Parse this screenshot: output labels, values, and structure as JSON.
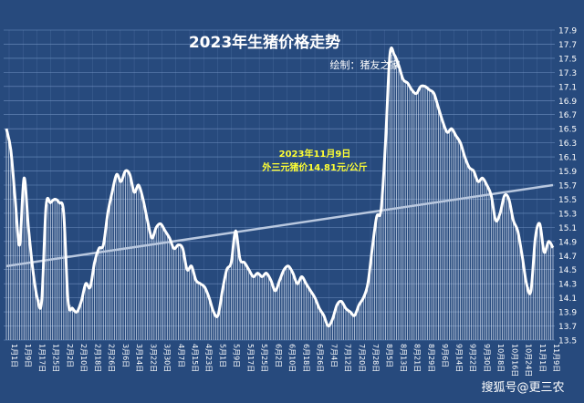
{
  "chart_data": {
    "type": "area",
    "title": "2023年生猪价格走势",
    "subtitle": "绘制：猪友之家",
    "annotation": {
      "line1": "2023年11月9日",
      "line2": "外三元猪价14.81元/公斤",
      "color": "#ffff33"
    },
    "watermark": "搜狐号@更三农",
    "ylim": [
      13.5,
      17.9
    ],
    "y_ticks": [
      "13.5",
      "13.7",
      "13.9",
      "14.1",
      "14.3",
      "14.5",
      "14.7",
      "14.9",
      "15.1",
      "15.3",
      "15.5",
      "15.7",
      "15.9",
      "16.1",
      "16.3",
      "16.5",
      "16.7",
      "16.9",
      "17.1",
      "17.3",
      "17.5",
      "17.7",
      "17.9"
    ],
    "x_tick_labels": [
      "1月1日",
      "1月9日",
      "1月17日",
      "1月25日",
      "2月2日",
      "2月10日",
      "2月18日",
      "2月26日",
      "3月6日",
      "3月14日",
      "3月22日",
      "3月30日",
      "4月7日",
      "4月15日",
      "4月23日",
      "5月1日",
      "5月9日",
      "5月17日",
      "5月25日",
      "6月2日",
      "6月10日",
      "6月18日",
      "6月26日",
      "7月4日",
      "7月12日",
      "7月20日",
      "7月28日",
      "8月5日",
      "8月13日",
      "8月21日",
      "8月29日",
      "9月6日",
      "9月14日",
      "9月22日",
      "9月30日",
      "10月8日",
      "10月16日",
      "10月24日",
      "11月1日",
      "11月9日"
    ],
    "x_range": [
      "2023-01-01",
      "2023-11-09"
    ],
    "series": [
      {
        "values": [
          16.5,
          16.2,
          15.5,
          14.85,
          15.8,
          15.1,
          14.5,
          14.1,
          14.05,
          15.4,
          15.45,
          15.5,
          15.45,
          15.3,
          14.05,
          13.95,
          13.9,
          14.05,
          14.3,
          14.25,
          14.6,
          14.8,
          14.85,
          15.3,
          15.6,
          15.85,
          15.75,
          15.9,
          15.85,
          15.6,
          15.7,
          15.5,
          15.2,
          14.95,
          15.1,
          15.15,
          15.05,
          14.95,
          14.8,
          14.85,
          14.8,
          14.5,
          14.55,
          14.35,
          14.3,
          14.25,
          14.1,
          13.9,
          13.85,
          14.2,
          14.5,
          14.6,
          15.05,
          14.65,
          14.6,
          14.5,
          14.4,
          14.45,
          14.4,
          14.45,
          14.35,
          14.2,
          14.35,
          14.5,
          14.55,
          14.45,
          14.3,
          14.4,
          14.3,
          14.2,
          14.1,
          13.95,
          13.85,
          13.7,
          13.8,
          14.0,
          14.05,
          13.95,
          13.9,
          13.85,
          14.0,
          14.1,
          14.3,
          14.8,
          15.25,
          15.35,
          16.3,
          17.55,
          17.55,
          17.4,
          17.2,
          17.15,
          17.05,
          17.0,
          17.1,
          17.1,
          17.05,
          17.0,
          16.8,
          16.6,
          16.45,
          16.5,
          16.4,
          16.3,
          16.1,
          15.95,
          15.9,
          15.75,
          15.8,
          15.7,
          15.55,
          15.2,
          15.3,
          15.55,
          15.5,
          15.2,
          15.05,
          14.7,
          14.3,
          14.2,
          14.95,
          15.15,
          14.75,
          14.9,
          14.81
        ]
      }
    ],
    "trend_line": {
      "start": 14.55,
      "end": 15.7
    },
    "colors": {
      "background": "#274a7d",
      "grid": "#6f8fbf",
      "line": "#ffffff",
      "fill_hatch": "#dfe8f5",
      "trend": "#b9c8df",
      "axis_text": "#ffffff"
    },
    "grid": true
  }
}
